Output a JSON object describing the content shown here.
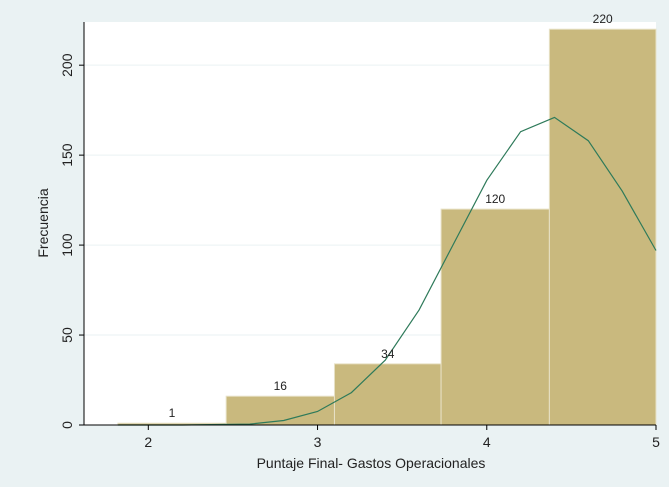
{
  "chart_data": {
    "type": "bar",
    "title": "",
    "xlabel": "Puntaje Final- Gastos Operacionales",
    "ylabel": "Frecuencia",
    "bins": [
      {
        "start": 1.82,
        "end": 2.46,
        "value": 1,
        "label": "1"
      },
      {
        "start": 2.46,
        "end": 3.1,
        "value": 16,
        "label": "16"
      },
      {
        "start": 3.1,
        "end": 3.73,
        "value": 34,
        "label": "34"
      },
      {
        "start": 3.73,
        "end": 4.37,
        "value": 120,
        "label": "120"
      },
      {
        "start": 4.37,
        "end": 5.0,
        "value": 220,
        "label": "220"
      }
    ],
    "density_curve": {
      "x": [
        1.82,
        2.2,
        2.6,
        2.8,
        3.0,
        3.2,
        3.4,
        3.6,
        3.8,
        4.0,
        4.2,
        4.4,
        4.6,
        4.8,
        5.0
      ],
      "y": [
        0,
        0,
        0.5,
        2.5,
        7.5,
        18,
        36,
        64,
        100,
        136,
        163,
        171,
        158,
        130,
        97
      ]
    },
    "xlim": [
      1.62,
      5.0
    ],
    "ylim": [
      0,
      224
    ],
    "xticks": [
      2,
      3,
      4,
      5
    ],
    "yticks": [
      0,
      50,
      100,
      150,
      200
    ],
    "grid": true,
    "colors": {
      "bar_fill": "#c9b97e",
      "bar_edge": "#e8e2c8",
      "curve": "#2e7a5a",
      "plot_bg": "#ffffff",
      "outer_bg": "#eaf2f3",
      "grid": "#eaf2f3",
      "axis": "#000000"
    }
  }
}
